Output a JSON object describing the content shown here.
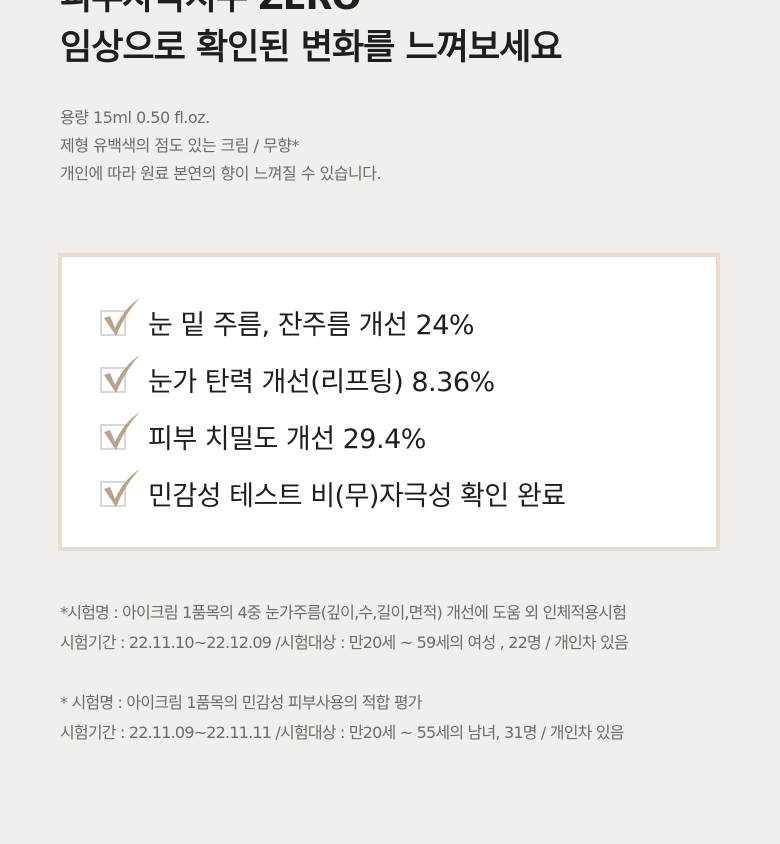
{
  "header": {
    "title_line1": "피부자극지수 ZERO",
    "title_line2": "임상으로 확인된 변화를 느껴보세요"
  },
  "specs": [
    "용량 15ml 0.50 fl.oz.",
    "제형 유백색의 점도 있는 크림 / 무향*",
    "개인에 따라 원료 본연의 향이 느껴질 수 있습니다."
  ],
  "results": {
    "icon": "checkbox-check-icon",
    "check_color": "#b8a288",
    "items": [
      "눈 밑 주름, 잔주름 개선 24%",
      "눈가 탄력 개선(리프팅) 8.36%",
      "피부 치밀도 개선 29.4%",
      "민감성 테스트 비(무)자극성 확인 완료"
    ]
  },
  "notes": [
    "*시험명 : 아이크림 1품목의 4중 눈가주름(깊이,수,길이,면적) 개선에 도움 외 인체적용시험",
    "시험기간 : 22.11.10~22.12.09 /시험대상 :  만20세 ~ 59세의 여성 , 22명 / 개인차 있음",
    "* 시험명 : 아이크림 1품목의 민감성 피부사용의 적합 평가",
    "시험기간 : 22.11.09~22.11.11 /시험대상 : 만20세 ~ 55세의 남녀, 31명  / 개인차 있음"
  ]
}
